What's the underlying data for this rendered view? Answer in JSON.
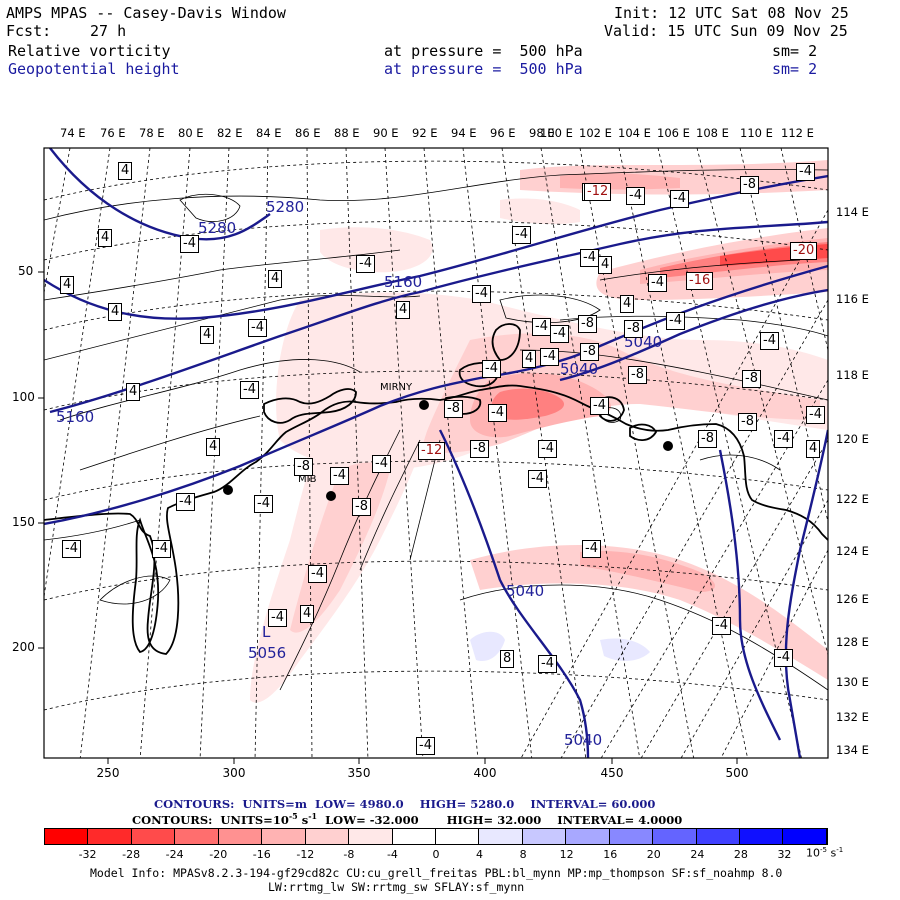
{
  "header": {
    "title": "AMPS MPAS -- Casey-Davis Window",
    "init": "Init: 12 UTC Sat 08 Nov 25",
    "fcst_label": "Fcst:",
    "fcst_value": "27 h",
    "valid": "Valid: 15 UTC Sun 09 Nov 25",
    "field1": "Relative vorticity",
    "field1_pressure": "at pressure =  500 hPa",
    "field1_sm": "sm= 2",
    "field2": "Geopotential height",
    "field2_pressure": "at pressure =  500 hPa",
    "field2_sm": "sm= 2"
  },
  "top_lon_labels": [
    "74 E",
    "76 E",
    "78 E",
    "80 E",
    "82 E",
    "84 E",
    "86 E",
    "88 E",
    "90 E",
    "92 E",
    "94 E",
    "96 E",
    "98 E",
    "100 E",
    "102 E",
    "104 E",
    "106 E",
    "108 E",
    "110 E",
    "112 E"
  ],
  "right_lon_labels": [
    "114 E",
    "116 E",
    "118 E",
    "120 E",
    "122 E",
    "124 E",
    "126 E",
    "128 E",
    "130 E",
    "132 E",
    "134 E"
  ],
  "x_axis": [
    "250",
    "300",
    "350",
    "400",
    "450",
    "500"
  ],
  "y_axis": [
    "50",
    "100",
    "150",
    "200"
  ],
  "height_labels": [
    "5280",
    "5280",
    "5160",
    "5160",
    "5040",
    "5040",
    "5040",
    "5040",
    "5056"
  ],
  "low_marker": "L",
  "stations": [
    "MIRNY",
    "MIB"
  ],
  "vort_labels": [
    "4",
    "4",
    "-4",
    "4",
    "4",
    "4",
    "4",
    "-4",
    "4",
    "4",
    "-4",
    "-4",
    "4",
    "-4",
    "-4",
    "-4",
    "-4",
    "4",
    "-4",
    "-4",
    "-12",
    "-8",
    "-4",
    "-8",
    "-4",
    "-8",
    "4",
    "-4",
    "-8",
    "-4",
    "-8",
    "-16",
    "-20",
    "-8",
    "-8",
    "-4",
    "-4",
    "-8",
    "-8",
    "-4",
    "-4",
    "-8",
    "-4",
    "-4",
    "-4",
    "-8",
    "4",
    "-12",
    "4",
    "4",
    "-4",
    "-4",
    "-4",
    "-4",
    "-4",
    "-4",
    "-8",
    "-4",
    "-4",
    "-4",
    "-4",
    "-4",
    "8",
    "-4",
    "-4",
    "-4",
    "4",
    "-4",
    "-4",
    "-4"
  ],
  "contour_info": {
    "line1_label": "CONTOURS:  UNITS=m  LOW=",
    "line1_low": "4980.0",
    "line1_high_label": "HIGH=",
    "line1_high": "5280.0",
    "line1_int_label": "INTERVAL=",
    "line1_int": "60.000",
    "line2_label": "CONTOURS:  UNITS=10",
    "line2_exp": "-5",
    "line2_unit": " s",
    "line2_unit_exp": "-1",
    "line2_low_label": "  LOW=",
    "line2_low": "-32.000",
    "line2_high_label": "HIGH=",
    "line2_high": "32.000",
    "line2_int_label": "INTERVAL=",
    "line2_int": "4.0000"
  },
  "colorbar": {
    "ticks": [
      "-32",
      "-28",
      "-24",
      "-20",
      "-16",
      "-12",
      "-8",
      "-4",
      "0",
      "4",
      "8",
      "12",
      "16",
      "20",
      "24",
      "28",
      "32"
    ],
    "unit": "10",
    "unit_exp": "-5",
    "unit2": " s",
    "unit2_exp": "-1",
    "colors": [
      "#ff0000",
      "#ff2a2a",
      "#ff4b4b",
      "#ff6e6e",
      "#ff9191",
      "#ffb3b3",
      "#ffd0d0",
      "#ffe8e8",
      "#ffffff",
      "#ffffff",
      "#e8e8ff",
      "#c8c8ff",
      "#a8a8ff",
      "#8888ff",
      "#6464ff",
      "#4040ff",
      "#1010ff",
      "#0000ff"
    ]
  },
  "model_info": {
    "line1": "Model Info: MPASv8.2.3-194-gf29cd82c CU:cu_grell_freitas PBL:bl_mynn MP:mp_thompson SF:sf_noahmp 8.0",
    "line2": "LW:rrtmg_lw SW:rrtmg_sw SFLAY:sf_mynn"
  }
}
